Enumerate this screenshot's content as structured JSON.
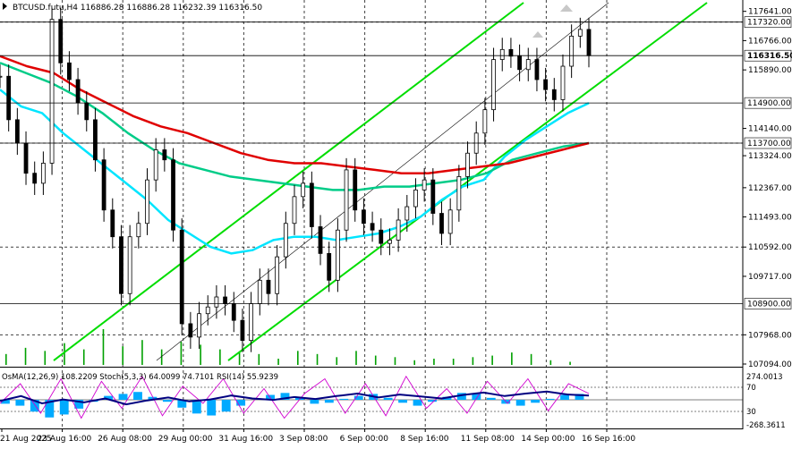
{
  "chart_data": [
    {
      "type": "candlestick",
      "title": "BTCUSD.futu,H4",
      "ohlc": {
        "open": "116886.28",
        "high": "116886.28",
        "low": "116232.39",
        "close": "116316.50"
      },
      "y_ticks": [
        "117641.00",
        "116766.00",
        "115890.00",
        "114140.00",
        "113324.00",
        "112367.00",
        "111493.00",
        "110592.00",
        "109717.00",
        "107968.00",
        "107094.00"
      ],
      "level_labels": [
        "117320.00",
        "116316.50",
        "114900.00",
        "113700.00",
        "108900.00"
      ],
      "x_ticks": [
        "21 Aug 2025",
        "23 Aug 16:00",
        "26 Aug 08:00",
        "29 Aug 00:00",
        "31 Aug 16:00",
        "3 Sep 08:00",
        "6 Sep 00:00",
        "8 Sep 16:00",
        "11 Sep 08:00",
        "14 Sep 00:00",
        "16 Sep 16:00"
      ],
      "ylim": [
        107094,
        117900
      ],
      "series": [
        {
          "name": "",
          "values": [
            115700,
            114400,
            113700,
            112800,
            112500,
            113100,
            117400,
            116100,
            115600,
            114900,
            114400,
            113200,
            111700,
            110900,
            109200,
            110900,
            111300,
            112600,
            113500,
            113200,
            111100,
            108300,
            107900,
            108600,
            108800,
            109100,
            108900,
            108400,
            107800,
            108900,
            109600,
            109200,
            110300,
            111300,
            112100,
            112500,
            111200,
            110400,
            109600,
            111100,
            112900,
            111700,
            111300,
            111100,
            110700,
            110800,
            111400,
            111800,
            112300,
            112600,
            111600,
            111000,
            111700,
            112700,
            113400,
            114000,
            114700,
            116200,
            116500,
            116300,
            115900,
            116200,
            115600,
            115300,
            115000,
            116000,
            116900,
            117100,
            116316
          ]
        },
        {
          "name": "",
          "values": [
            115300,
            114800,
            114600,
            114000,
            113500,
            113000,
            112500,
            112000,
            111400,
            111000,
            110600,
            110400,
            110500,
            110800,
            110900,
            110900,
            110800,
            110900,
            111000,
            111200,
            111500,
            112000,
            112400,
            112600,
            113300,
            113800,
            114200,
            114600,
            114900
          ]
        },
        {
          "name": "",
          "values": [
            116100,
            115800,
            115500,
            115100,
            114600,
            114000,
            113500,
            113100,
            112900,
            112700,
            112600,
            112500,
            112400,
            112300,
            112300,
            112400,
            112400,
            112500,
            112600,
            112800,
            113200,
            113400,
            113600,
            113700
          ]
        },
        {
          "name": "",
          "values": [
            116300,
            116000,
            115800,
            115300,
            114900,
            114500,
            114200,
            114000,
            113700,
            113400,
            113200,
            113100,
            113100,
            113000,
            112900,
            112800,
            112800,
            112900,
            113000,
            113100,
            113300,
            113500,
            113700
          ]
        }
      ],
      "volume": [
        7,
        11,
        9,
        14,
        10,
        23,
        12,
        16,
        10,
        15,
        13,
        10,
        8,
        7,
        4,
        9,
        7,
        5,
        9,
        6,
        5,
        3,
        4,
        4,
        5,
        6,
        8,
        7,
        3,
        2
      ],
      "colors": {
        "price": "#000000",
        "ma_fast": "#00e5ff",
        "ma_mid": "#00cc88",
        "ma_slow": "#e00000",
        "channel": "#00dd00",
        "grid": "#000000",
        "volume": "#00a000"
      }
    },
    {
      "type": "oscillator",
      "title": "OsMA(12,26,9) 108.2209  Stoch(5,3,3) 64.0099 74.7101  RSI(14) 55.9239",
      "y_ticks": [
        "274.0013",
        "70",
        "30",
        "-268.3611"
      ],
      "levels": [
        70,
        30
      ],
      "osma": [
        -40,
        -60,
        -120,
        -180,
        -150,
        -90,
        -20,
        40,
        60,
        80,
        30,
        -20,
        -80,
        -140,
        -160,
        -120,
        -60,
        0,
        50,
        70,
        20,
        -40,
        -30,
        10,
        40,
        60,
        20,
        -30,
        -60,
        -20,
        30,
        70,
        60,
        20,
        -40,
        -60,
        -30,
        10,
        50,
        60
      ],
      "stoch_k": [
        40,
        80,
        20,
        90,
        10,
        85,
        30,
        95,
        15,
        75,
        40,
        90,
        20,
        70,
        10,
        60,
        90,
        20,
        80,
        15,
        95,
        30,
        70,
        20,
        85,
        40,
        90,
        25,
        80,
        60
      ],
      "rsi": [
        45,
        55,
        40,
        48,
        42,
        50,
        38,
        46,
        52,
        44,
        48,
        56,
        50,
        47,
        53,
        49,
        55,
        60,
        52,
        58,
        54,
        50,
        57,
        62,
        55,
        60,
        64,
        58,
        56
      ]
    }
  ]
}
